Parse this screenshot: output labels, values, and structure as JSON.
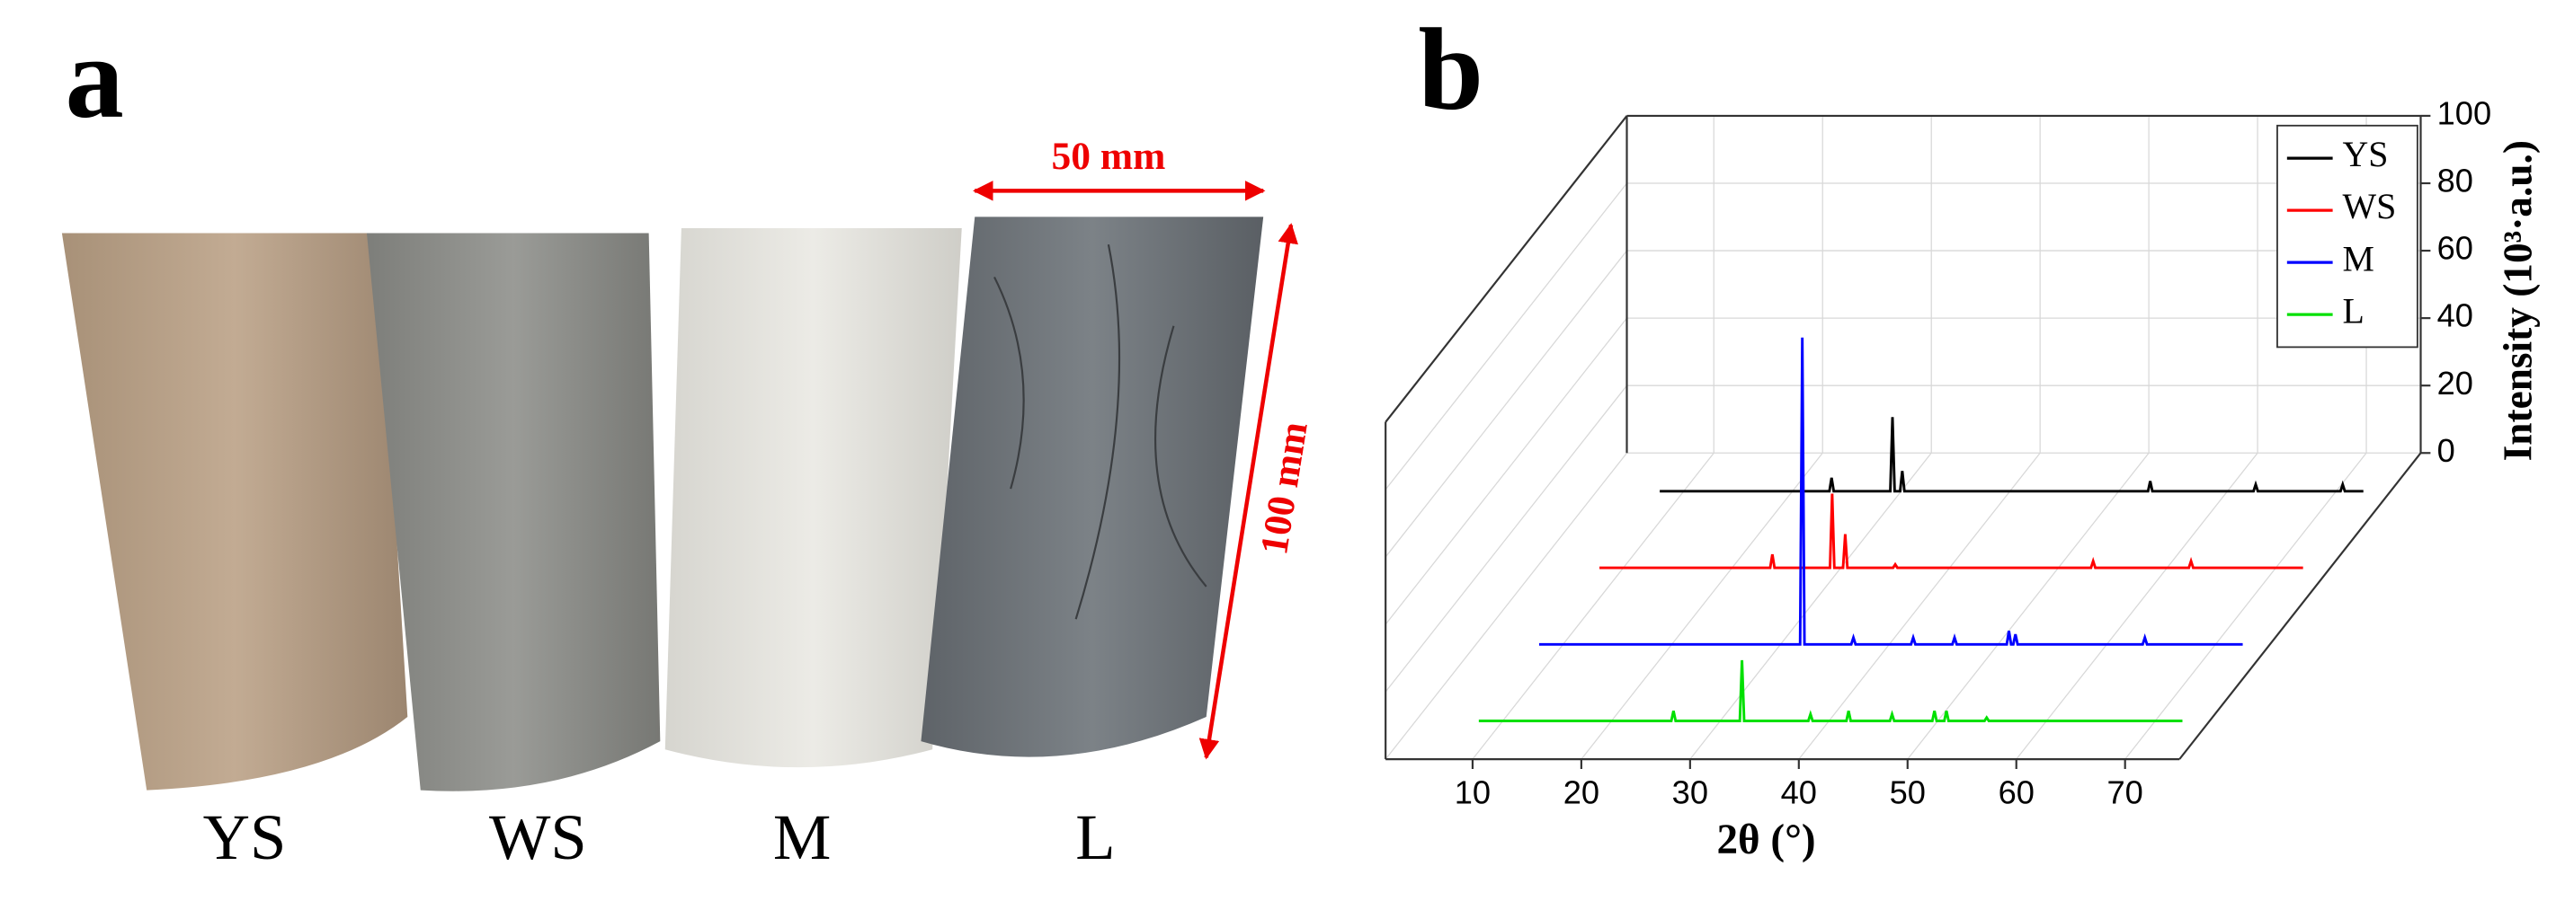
{
  "panel_a": {
    "label": "a",
    "samples": [
      "YS",
      "WS",
      "M",
      "L"
    ],
    "width_label": "50 mm",
    "height_label": "100 mm"
  },
  "panel_b": {
    "label": "b"
  },
  "chart_data": {
    "type": "waterfall",
    "x_label": "2θ (°)",
    "y_label": "Intensity (10³·a.u.)",
    "xlim": [
      2,
      75
    ],
    "xticks": [
      10,
      20,
      30,
      40,
      50,
      60,
      70
    ],
    "ylim": [
      0,
      100
    ],
    "yticks": [
      0,
      20,
      40,
      60,
      80,
      100
    ],
    "grid": true,
    "legend": "top-right",
    "series": [
      {
        "name": "YS",
        "color": "#000000",
        "x": [
          7.8,
          23.4,
          23.6,
          23.8,
          29,
          29.2,
          29.4,
          29.9,
          30.1,
          30.3,
          52.7,
          52.9,
          53.1,
          62.4,
          62.6,
          62.8,
          70.4,
          70.6,
          70.8,
          72.5
        ],
        "values": [
          0,
          0,
          4,
          0,
          0,
          22,
          0,
          0,
          6,
          0,
          0,
          3,
          0,
          0,
          2,
          0,
          0,
          2,
          0,
          0
        ]
      },
      {
        "name": "WS",
        "color": "#ff0000",
        "x": [
          7.8,
          23.5,
          23.7,
          23.9,
          29,
          29.2,
          29.4,
          30.2,
          30.4,
          30.6,
          34.8,
          35,
          35.2,
          53,
          53.2,
          53.4,
          62,
          62.2,
          62.4,
          72.5
        ],
        "values": [
          0,
          0,
          4,
          0,
          0,
          22,
          0,
          0,
          10,
          0,
          0,
          1,
          0,
          0,
          2,
          0,
          0,
          2,
          0,
          0
        ]
      },
      {
        "name": "M",
        "color": "#0000ff",
        "x": [
          7.8,
          31.8,
          32,
          32.2,
          36.5,
          36.7,
          36.9,
          42,
          42.2,
          42.4,
          45.8,
          46,
          46.2,
          50.8,
          51,
          51.2,
          51.4,
          51.6,
          51.8,
          63.3,
          63.5,
          63.7,
          72.5
        ],
        "values": [
          0,
          0,
          91,
          0,
          0,
          2,
          0,
          0,
          2,
          0,
          0,
          2,
          0,
          0,
          4,
          0,
          0,
          3,
          0,
          0,
          2,
          0,
          0
        ]
      },
      {
        "name": "L",
        "color": "#00e000",
        "x": [
          7.8,
          25.5,
          25.7,
          25.9,
          31.8,
          32,
          32.2,
          38.1,
          38.3,
          38.5,
          41.6,
          41.8,
          42,
          45.6,
          45.8,
          46,
          49.5,
          49.7,
          49.9,
          50.6,
          50.8,
          51,
          54.3,
          54.5,
          54.7,
          72.5
        ],
        "values": [
          0,
          0,
          3,
          0,
          0,
          18,
          0,
          0,
          2,
          0,
          0,
          3,
          0,
          0,
          2,
          0,
          0,
          3,
          0,
          0,
          3,
          0,
          0,
          1,
          0,
          0
        ]
      }
    ]
  }
}
